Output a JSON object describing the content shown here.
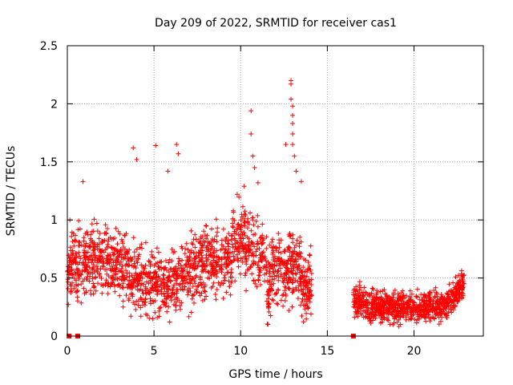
{
  "chart_data": {
    "type": "scatter",
    "title": "Day 209 of 2022, SRMTID for receiver cas1",
    "xlabel": "GPS time / hours",
    "ylabel": "SRMTID / TECUs",
    "xlim": [
      0,
      24
    ],
    "ylim": [
      0,
      2.5
    ],
    "x_ticks": [
      0,
      5,
      10,
      15,
      20
    ],
    "x_tick_labels": [
      "0",
      "5",
      "10",
      "15",
      "20"
    ],
    "y_ticks": [
      0,
      0.5,
      1,
      1.5,
      2,
      2.5
    ],
    "y_tick_labels": [
      "0",
      "0.5",
      "1",
      "1.5",
      "2",
      "2.5"
    ],
    "grid": true,
    "marker": "+",
    "color": "#ff0000",
    "series": [
      {
        "name": "cas1",
        "description": "dense scatter of SRMTID values",
        "segments": [
          {
            "x_range": [
              0.0,
              14.1
            ],
            "base": 0.55,
            "spread": 0.38
          },
          {
            "x_range": [
              16.5,
              22.9
            ],
            "base": 0.25,
            "spread": 0.17
          }
        ],
        "highlights": [
          {
            "x": 0.15,
            "y": 1.0
          },
          {
            "x": 0.9,
            "y": 1.33
          },
          {
            "x": 3.8,
            "y": 1.62
          },
          {
            "x": 4.0,
            "y": 1.52
          },
          {
            "x": 5.1,
            "y": 1.64
          },
          {
            "x": 5.8,
            "y": 1.42
          },
          {
            "x": 6.3,
            "y": 1.65
          },
          {
            "x": 6.4,
            "y": 1.57
          },
          {
            "x": 10.6,
            "y": 1.94
          },
          {
            "x": 10.6,
            "y": 1.74
          },
          {
            "x": 10.7,
            "y": 1.55
          },
          {
            "x": 10.8,
            "y": 1.45
          },
          {
            "x": 11.0,
            "y": 1.32
          },
          {
            "x": 12.6,
            "y": 1.65
          },
          {
            "x": 12.9,
            "y": 2.2
          },
          {
            "x": 12.9,
            "y": 2.17
          },
          {
            "x": 12.9,
            "y": 2.04
          },
          {
            "x": 13.0,
            "y": 1.98
          },
          {
            "x": 13.0,
            "y": 1.9
          },
          {
            "x": 13.0,
            "y": 1.83
          },
          {
            "x": 13.0,
            "y": 1.74
          },
          {
            "x": 13.0,
            "y": 1.65
          },
          {
            "x": 13.1,
            "y": 1.55
          },
          {
            "x": 13.2,
            "y": 1.42
          },
          {
            "x": 13.5,
            "y": 1.33
          },
          {
            "x": 9.8,
            "y": 1.22
          },
          {
            "x": 10.2,
            "y": 1.29
          }
        ],
        "zero_points": [
          {
            "x": 0.1,
            "y": 0
          },
          {
            "x": 0.6,
            "y": 0
          },
          {
            "x": 16.5,
            "y": 0
          }
        ]
      }
    ]
  }
}
